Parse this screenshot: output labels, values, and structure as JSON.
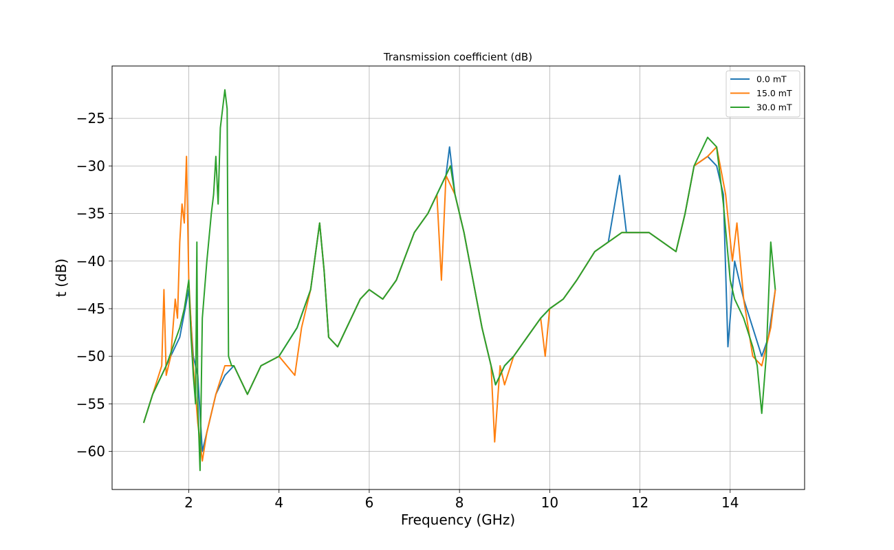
{
  "chart_data": {
    "type": "line",
    "title": "Transmission coefficient (dB)",
    "xlabel": "Frequency (GHz)",
    "ylabel": "t (dB)",
    "xlim": [
      0.3,
      15.65
    ],
    "ylim": [
      -64,
      -19.5
    ],
    "xticks": [
      2,
      4,
      6,
      8,
      10,
      12,
      14
    ],
    "yticks": [
      -25,
      -30,
      -35,
      -40,
      -45,
      -50,
      -55,
      -60
    ],
    "xtick_labels": [
      "2",
      "4",
      "6",
      "8",
      "10",
      "12",
      "14"
    ],
    "ytick_labels": [
      "−25",
      "−30",
      "−35",
      "−40",
      "−45",
      "−50",
      "−55",
      "−60"
    ],
    "grid": true,
    "legend_position": "top-right",
    "series": [
      {
        "name": "0.0 mT",
        "color": "#1f77b4",
        "x": [
          1.0,
          1.2,
          1.5,
          1.8,
          2.0,
          2.1,
          2.2,
          2.3,
          2.4,
          2.6,
          2.8,
          3.0,
          3.3,
          3.6,
          4.0,
          4.4,
          4.7,
          4.9,
          5.0,
          5.1,
          5.3,
          5.6,
          5.8,
          6.0,
          6.3,
          6.6,
          7.0,
          7.3,
          7.5,
          7.7,
          7.78,
          7.9,
          8.1,
          8.3,
          8.5,
          8.7,
          8.8,
          8.9,
          9.0,
          9.2,
          9.5,
          9.8,
          10.0,
          10.3,
          10.6,
          11.0,
          11.3,
          11.55,
          11.7,
          12.0,
          12.2,
          12.5,
          12.8,
          13.0,
          13.2,
          13.5,
          13.7,
          13.85,
          13.95,
          14.1,
          14.3,
          14.5,
          14.7,
          14.85,
          15.0
        ],
        "y": [
          -57,
          -54,
          -51,
          -48,
          -43,
          -50,
          -52,
          -60,
          -58,
          -54,
          -52,
          -51,
          -54,
          -51,
          -50,
          -47,
          -43,
          -36,
          -41,
          -48,
          -49,
          -46,
          -44,
          -43,
          -44,
          -42,
          -37,
          -35,
          -33,
          -31,
          -28,
          -33,
          -37,
          -42,
          -47,
          -51,
          -53,
          -52,
          -51,
          -50,
          -48,
          -46,
          -45,
          -44,
          -42,
          -39,
          -38,
          -31,
          -37,
          -37,
          -37,
          -38,
          -39,
          -35,
          -30,
          -29,
          -30,
          -33,
          -49,
          -40,
          -44,
          -47,
          -50,
          -48,
          -43
        ]
      },
      {
        "name": "15.0 mT",
        "color": "#ff7f0e",
        "x": [
          1.0,
          1.2,
          1.4,
          1.45,
          1.5,
          1.6,
          1.7,
          1.75,
          1.8,
          1.85,
          1.9,
          1.95,
          2.0,
          2.1,
          2.2,
          2.3,
          2.4,
          2.6,
          2.8,
          3.0,
          3.3,
          3.6,
          4.0,
          4.35,
          4.5,
          4.7,
          4.9,
          5.0,
          5.1,
          5.3,
          5.6,
          5.8,
          6.0,
          6.3,
          6.6,
          7.0,
          7.3,
          7.5,
          7.6,
          7.7,
          7.9,
          8.1,
          8.3,
          8.5,
          8.7,
          8.78,
          8.9,
          9.0,
          9.2,
          9.5,
          9.8,
          9.9,
          10.0,
          10.3,
          10.6,
          11.0,
          11.3,
          11.6,
          12.0,
          12.2,
          12.5,
          12.8,
          13.0,
          13.2,
          13.5,
          13.7,
          13.9,
          14.05,
          14.15,
          14.3,
          14.5,
          14.7,
          14.9,
          15.0
        ],
        "y": [
          -57,
          -54,
          -51,
          -43,
          -52,
          -50,
          -44,
          -46,
          -38,
          -34,
          -36,
          -29,
          -42,
          -51,
          -57,
          -61,
          -58,
          -54,
          -51,
          -51,
          -54,
          -51,
          -50,
          -52,
          -47,
          -43,
          -36,
          -41,
          -48,
          -49,
          -46,
          -44,
          -43,
          -44,
          -42,
          -37,
          -35,
          -33,
          -42,
          -31,
          -33,
          -37,
          -42,
          -47,
          -51,
          -59,
          -51,
          -53,
          -50,
          -48,
          -46,
          -50,
          -45,
          -44,
          -42,
          -39,
          -38,
          -37,
          -37,
          -37,
          -38,
          -39,
          -35,
          -30,
          -29,
          -28,
          -33,
          -40,
          -36,
          -44,
          -50,
          -51,
          -47,
          -43
        ]
      },
      {
        "name": "30.0 mT",
        "color": "#2ca02c",
        "x": [
          1.0,
          1.2,
          1.5,
          1.8,
          1.9,
          2.0,
          2.05,
          2.1,
          2.15,
          2.18,
          2.2,
          2.25,
          2.3,
          2.4,
          2.5,
          2.55,
          2.6,
          2.65,
          2.7,
          2.75,
          2.8,
          2.85,
          2.88,
          2.95,
          3.0,
          3.3,
          3.6,
          4.0,
          4.4,
          4.7,
          4.9,
          5.0,
          5.1,
          5.3,
          5.6,
          5.8,
          6.0,
          6.3,
          6.6,
          7.0,
          7.3,
          7.5,
          7.7,
          7.8,
          7.9,
          8.1,
          8.3,
          8.5,
          8.7,
          8.8,
          8.9,
          9.0,
          9.2,
          9.5,
          9.8,
          10.0,
          10.3,
          10.6,
          11.0,
          11.3,
          11.6,
          12.0,
          12.2,
          12.5,
          12.8,
          13.0,
          13.2,
          13.4,
          13.5,
          13.7,
          13.85,
          14.0,
          14.1,
          14.3,
          14.5,
          14.6,
          14.7,
          14.8,
          14.9,
          15.0
        ],
        "y": [
          -57,
          -54,
          -51,
          -47,
          -45,
          -42,
          -48,
          -52,
          -55,
          -38,
          -55,
          -62,
          -46,
          -40,
          -35,
          -33,
          -29,
          -34,
          -26,
          -24,
          -22,
          -24,
          -50,
          -51,
          -51,
          -54,
          -51,
          -50,
          -47,
          -43,
          -36,
          -41,
          -48,
          -49,
          -46,
          -44,
          -43,
          -44,
          -42,
          -37,
          -35,
          -33,
          -31,
          -30,
          -33,
          -37,
          -42,
          -47,
          -51,
          -53,
          -52,
          -51,
          -50,
          -48,
          -46,
          -45,
          -44,
          -42,
          -39,
          -38,
          -37,
          -37,
          -37,
          -38,
          -39,
          -35,
          -30,
          -28,
          -27,
          -28,
          -34,
          -42,
          -44,
          -46,
          -49,
          -51,
          -56,
          -50,
          -38,
          -43
        ]
      }
    ]
  }
}
